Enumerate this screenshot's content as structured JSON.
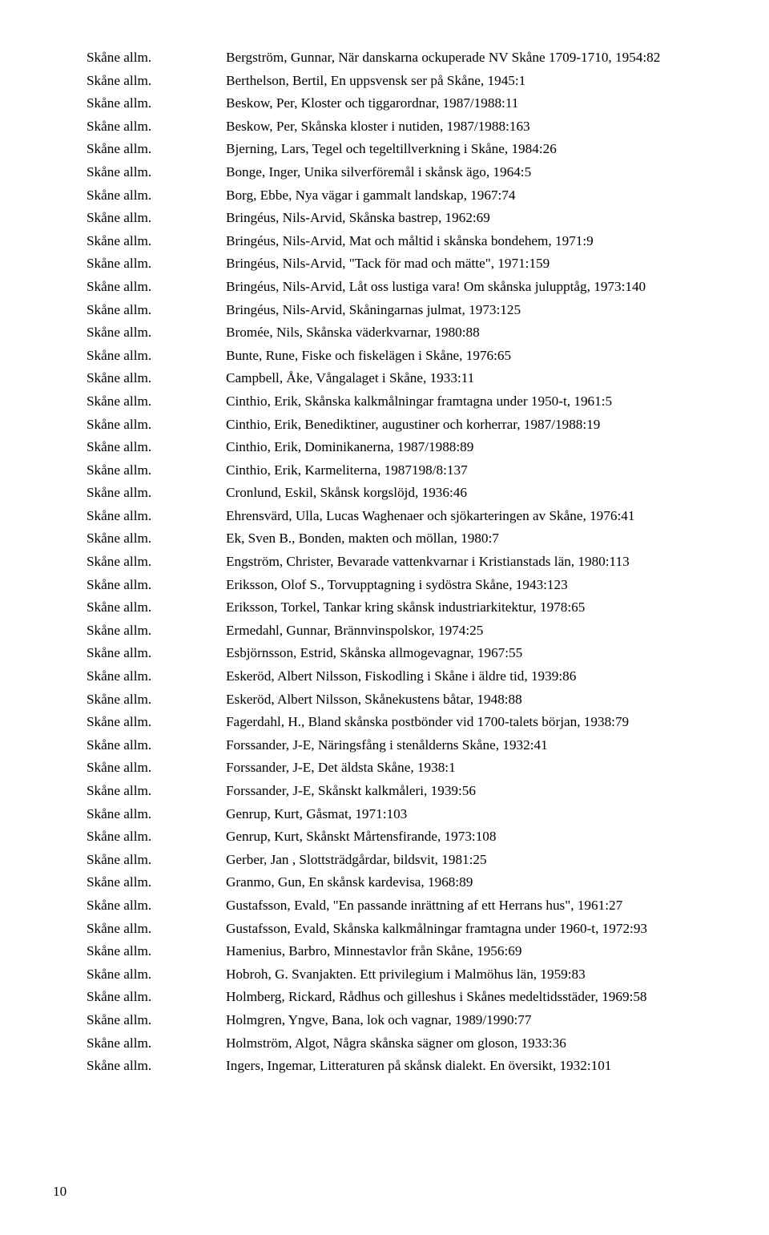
{
  "page_number": "10",
  "category_label": "Skåne allm.",
  "entries": [
    {
      "description": "Bergström, Gunnar, När danskarna ockuperade NV Skåne 1709-1710, 1954:82"
    },
    {
      "description": "Berthelson, Bertil, En uppsvensk ser på Skåne, 1945:1"
    },
    {
      "description": "Beskow, Per, Kloster och tiggarordnar, 1987/1988:11"
    },
    {
      "description": "Beskow, Per, Skånska kloster i nutiden, 1987/1988:163"
    },
    {
      "description": "Bjerning, Lars, Tegel och tegeltillverkning i Skåne, 1984:26"
    },
    {
      "description": "Bonge, Inger, Unika silverföremål i skånsk ägo, 1964:5"
    },
    {
      "description": "Borg, Ebbe, Nya vägar i gammalt landskap, 1967:74"
    },
    {
      "description": "Bringéus, Nils-Arvid, Skånska bastrep, 1962:69"
    },
    {
      "description": "Bringéus, Nils-Arvid, Mat och måltid i skånska bondehem, 1971:9"
    },
    {
      "description": "Bringéus, Nils-Arvid, \"Tack för mad och mätte\", 1971:159"
    },
    {
      "description": "Bringéus, Nils-Arvid, Låt oss lustiga vara! Om skånska julupptåg, 1973:140"
    },
    {
      "description": "Bringéus, Nils-Arvid, Skåningarnas julmat, 1973:125"
    },
    {
      "description": "Bromée, Nils, Skånska väderkvarnar, 1980:88"
    },
    {
      "description": "Bunte, Rune, Fiske och fiskelägen i Skåne, 1976:65"
    },
    {
      "description": "Campbell, Åke, Vångalaget i Skåne, 1933:11"
    },
    {
      "description": "Cinthio, Erik, Skånska kalkmålningar framtagna under 1950-t, 1961:5"
    },
    {
      "description": "Cinthio, Erik, Benediktiner, augustiner och korherrar,  1987/1988:19"
    },
    {
      "description": "Cinthio, Erik, Dominikanerna, 1987/1988:89"
    },
    {
      "description": "Cinthio, Erik, Karmeliterna, 1987198/8:137"
    },
    {
      "description": "Cronlund, Eskil,  Skånsk korgslöjd, 1936:46"
    },
    {
      "description": "Ehrensvärd, Ulla, Lucas Waghenaer och sjökarteringen av Skåne, 1976:41"
    },
    {
      "description": "Ek, Sven B., Bonden, makten och möllan, 1980:7"
    },
    {
      "description": "Engström, Christer, Bevarade vattenkvarnar i Kristianstads län, 1980:113"
    },
    {
      "description": "Eriksson, Olof S., Torvupptagning i sydöstra Skåne, 1943:123"
    },
    {
      "description": "Eriksson, Torkel, Tankar kring skånsk industriarkitektur, 1978:65"
    },
    {
      "description": "Ermedahl, Gunnar, Brännvinspolskor, 1974:25"
    },
    {
      "description": "Esbjörnsson, Estrid, Skånska allmogevagnar, 1967:55"
    },
    {
      "description": "Eskeröd, Albert Nilsson, Fiskodling i Skåne i äldre tid, 1939:86"
    },
    {
      "description": "Eskeröd, Albert Nilsson, Skånekustens båtar, 1948:88"
    },
    {
      "description": "Fagerdahl, H., Bland skånska postbönder vid 1700-talets början, 1938:79"
    },
    {
      "description": "Forssander, J-E, Näringsfång i stenålderns Skåne, 1932:41"
    },
    {
      "description": "Forssander, J-E, Det äldsta Skåne, 1938:1"
    },
    {
      "description": "Forssander, J-E, Skånskt kalkmåleri, 1939:56"
    },
    {
      "description": "Genrup, Kurt, Gåsmat, 1971:103"
    },
    {
      "description": "Genrup, Kurt, Skånskt Mårtensfirande, 1973:108"
    },
    {
      "description": "Gerber, Jan , Slottsträdgårdar, bildsvit, 1981:25"
    },
    {
      "description": "Granmo, Gun, En skånsk kardevisa, 1968:89"
    },
    {
      "description": "Gustafsson, Evald, \"En passande inrättning af ett Herrans hus\", 1961:27"
    },
    {
      "description": "Gustafsson, Evald, Skånska kalkmålningar framtagna under 1960-t, 1972:93"
    },
    {
      "description": "Hamenius, Barbro, Minnestavlor från Skåne, 1956:69"
    },
    {
      "description": "Hobroh, G. Svanjakten. Ett privilegium i Malmöhus län, 1959:83"
    },
    {
      "description": "Holmberg, Rickard, Rådhus och gilleshus i Skånes medeltidsstäder, 1969:58"
    },
    {
      "description": "Holmgren, Yngve, Bana, lok och vagnar, 1989/1990:77"
    },
    {
      "description": "Holmström, Algot, Några skånska sägner om gloson, 1933:36"
    },
    {
      "description": "Ingers, Ingemar, Litteraturen på skånsk dialekt. En översikt, 1932:101"
    }
  ]
}
